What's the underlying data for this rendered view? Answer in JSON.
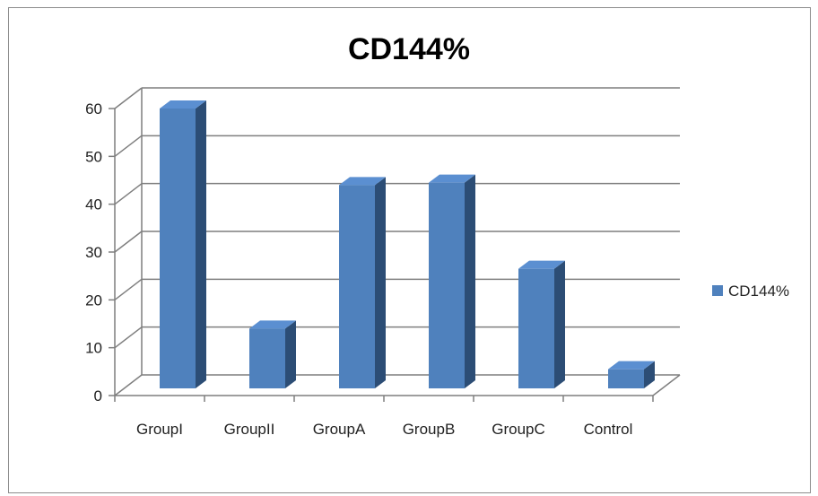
{
  "chart_data": {
    "type": "bar",
    "title": "CD144%",
    "xlabel": "",
    "ylabel": "",
    "categories": [
      "GroupI",
      "GroupII",
      "GroupA",
      "GroupB",
      "GroupC",
      "Control"
    ],
    "series": [
      {
        "name": "CD144%",
        "values": [
          58.5,
          12.5,
          42.5,
          43,
          25,
          4
        ]
      }
    ],
    "ylim": [
      0,
      60
    ],
    "yticks": [
      "0",
      "10",
      "20",
      "30",
      "40",
      "50",
      "60"
    ],
    "grid": true,
    "legend": "right",
    "style": "3d-column",
    "colors": {
      "bar_front": "#4f81bd",
      "bar_side": "#2c4d75",
      "bar_top": "#5b8fd1",
      "grid": "#7f7f7f"
    }
  }
}
